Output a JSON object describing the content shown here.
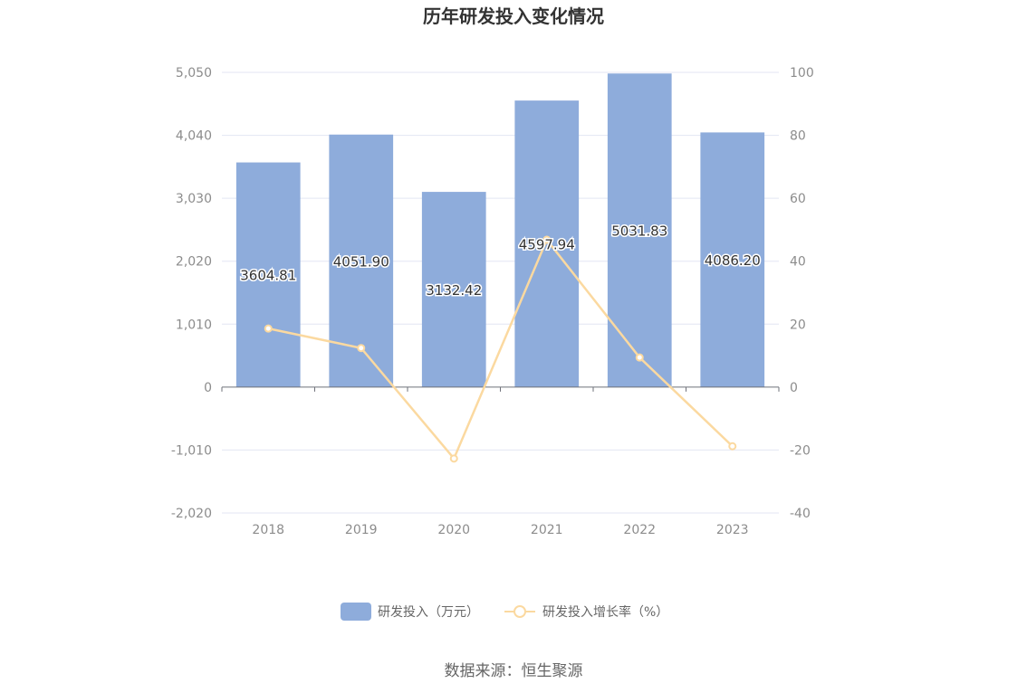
{
  "chart_data": {
    "type": "bar",
    "title": "历年研发投入变化情况",
    "categories": [
      "2018",
      "2019",
      "2020",
      "2021",
      "2022",
      "2023"
    ],
    "series": [
      {
        "name": "研发投入（万元）",
        "type": "bar",
        "axis": "left",
        "color": "#8eacdb",
        "values": [
          3604.81,
          4051.9,
          3132.42,
          4597.94,
          5031.83,
          4086.2
        ],
        "labels": [
          "3604.81",
          "4051.90",
          "3132.42",
          "4597.94",
          "5031.83",
          "4086.20"
        ]
      },
      {
        "name": "研发投入增长率（%）",
        "type": "line",
        "axis": "right",
        "color": "#fbd9a0",
        "values": [
          18.6,
          12.4,
          -22.7,
          46.8,
          9.4,
          -18.8
        ]
      }
    ],
    "y_left": {
      "ylim": [
        -2020,
        5050
      ],
      "ticks": [
        5050,
        4040,
        3030,
        2020,
        1010,
        0,
        -1010,
        -2020
      ],
      "tick_labels": [
        "5,050",
        "4,040",
        "3,030",
        "2,020",
        "1,010",
        "0",
        "-1,010",
        "-2,020"
      ]
    },
    "y_right": {
      "ylim": [
        -40,
        100
      ],
      "ticks": [
        100,
        80,
        60,
        40,
        20,
        0,
        -20,
        -40
      ],
      "tick_labels": [
        "100",
        "80",
        "60",
        "40",
        "20",
        "0",
        "-20",
        "-40"
      ]
    },
    "grid": true,
    "legend_position": "bottom-center"
  },
  "source_text": "数据来源：恒生聚源"
}
